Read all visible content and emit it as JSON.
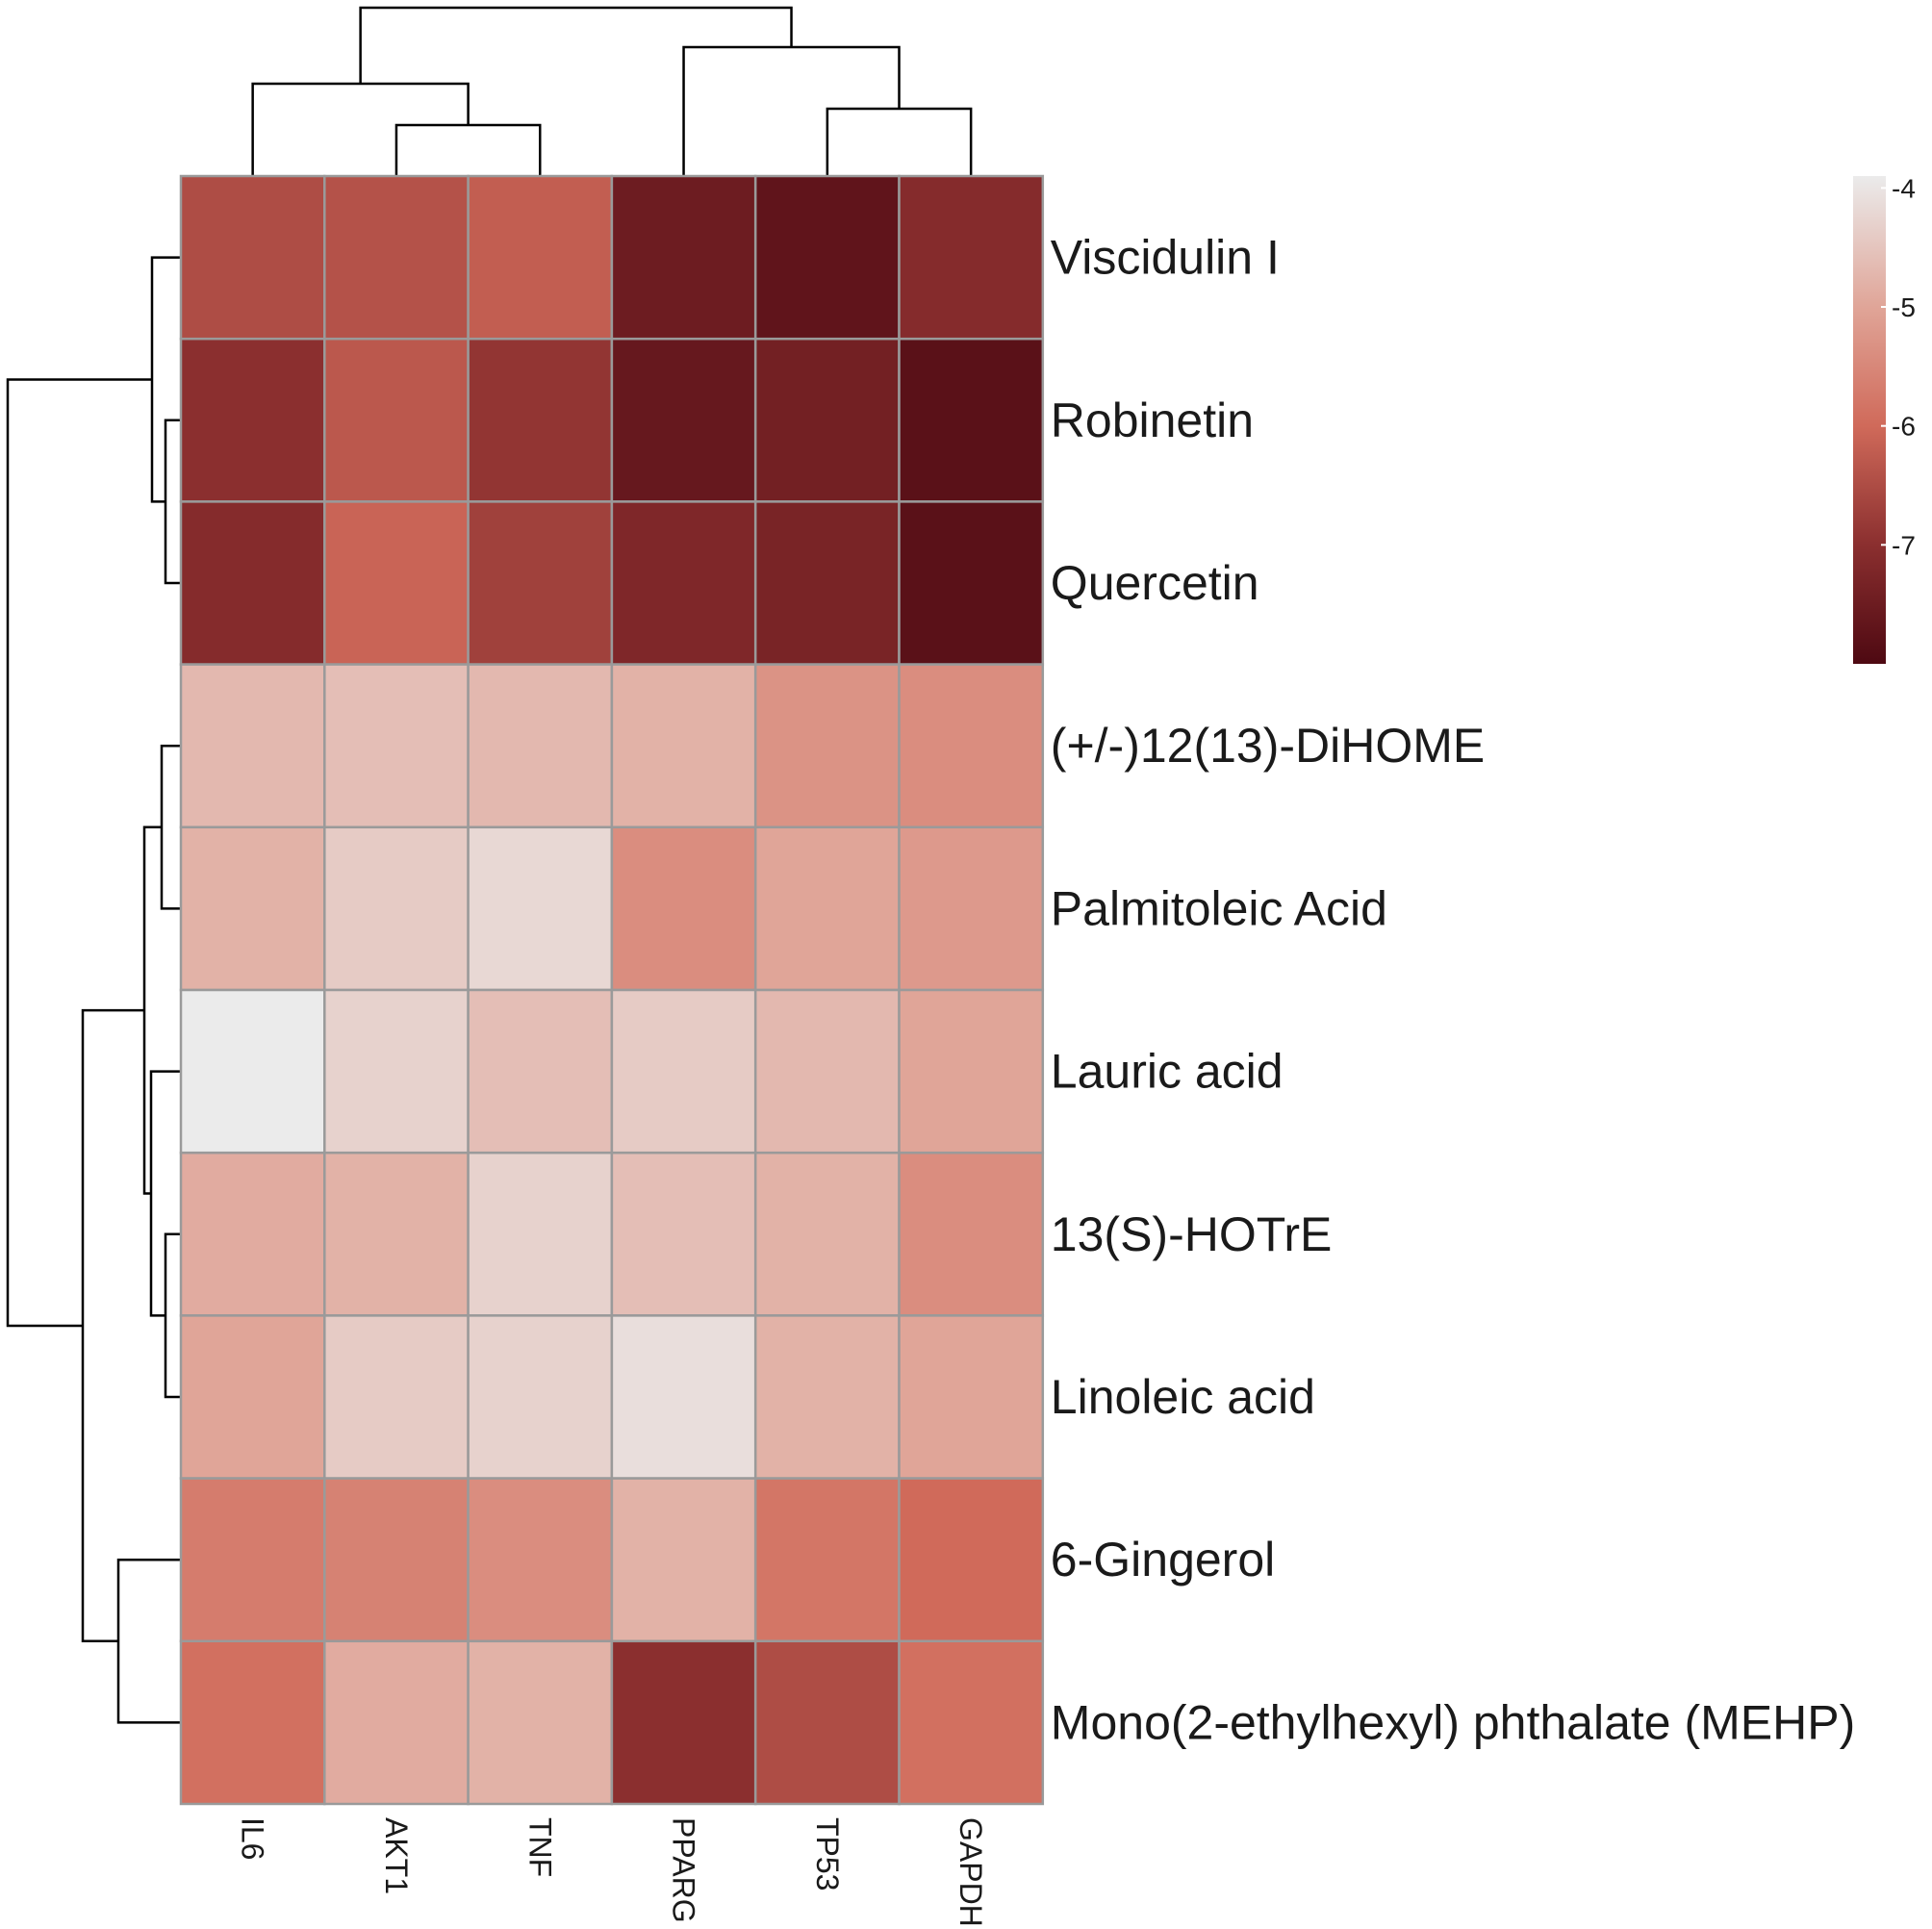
{
  "chart_data": {
    "type": "heatmap",
    "title": "",
    "columns": [
      "IL6",
      "AKT1",
      "TNF",
      "PPARG",
      "TP53",
      "GAPDH"
    ],
    "rows": [
      "Viscidulin I",
      "Robinetin",
      "Quercetin",
      "(+/-)12(13)-DiHOME",
      "Palmitoleic Acid",
      "Lauric acid",
      "13(S)-HOTrE",
      "Linoleic acid",
      "6-Gingerol",
      "Mono(2-ethylhexyl) phthalate (MEHP)"
    ],
    "values": [
      [
        -6.5,
        -6.4,
        -6.2,
        -7.5,
        -7.7,
        -7.1
      ],
      [
        -7.0,
        -6.3,
        -6.9,
        -7.6,
        -7.4,
        -7.8
      ],
      [
        -7.1,
        -6.1,
        -6.7,
        -7.2,
        -7.3,
        -7.8
      ],
      [
        -4.7,
        -4.6,
        -4.7,
        -4.8,
        -5.3,
        -5.4
      ],
      [
        -4.8,
        -4.4,
        -4.2,
        -5.4,
        -5.0,
        -5.2
      ],
      [
        -3.9,
        -4.3,
        -4.6,
        -4.4,
        -4.7,
        -5.0
      ],
      [
        -4.9,
        -4.8,
        -4.3,
        -4.6,
        -4.8,
        -5.4
      ],
      [
        -5.0,
        -4.4,
        -4.3,
        -4.1,
        -4.8,
        -5.0
      ],
      [
        -5.7,
        -5.6,
        -5.4,
        -4.8,
        -5.8,
        -6.0
      ],
      [
        -5.9,
        -4.9,
        -4.8,
        -7.0,
        -6.5,
        -5.9
      ]
    ],
    "color_scale": {
      "min": -8,
      "max": -3.9,
      "stops": [
        {
          "value": -8.0,
          "color": "#4e0912"
        },
        {
          "value": -7.0,
          "color": "#8b2f2f"
        },
        {
          "value": -6.0,
          "color": "#d06a5a"
        },
        {
          "value": -5.0,
          "color": "#e0a598"
        },
        {
          "value": -3.9,
          "color": "#ebebeb"
        }
      ]
    },
    "legend": {
      "position": "top-right",
      "ticks": [
        -4,
        -5,
        -6,
        -7
      ],
      "tick_labels": [
        "-4",
        "-5",
        "-6",
        "-7"
      ]
    },
    "row_dendrogram": {
      "order": [
        0,
        1,
        2,
        3,
        4,
        5,
        6,
        7,
        8,
        9
      ]
    },
    "col_dendrogram": {
      "order": [
        0,
        1,
        2,
        3,
        4,
        5
      ]
    }
  }
}
